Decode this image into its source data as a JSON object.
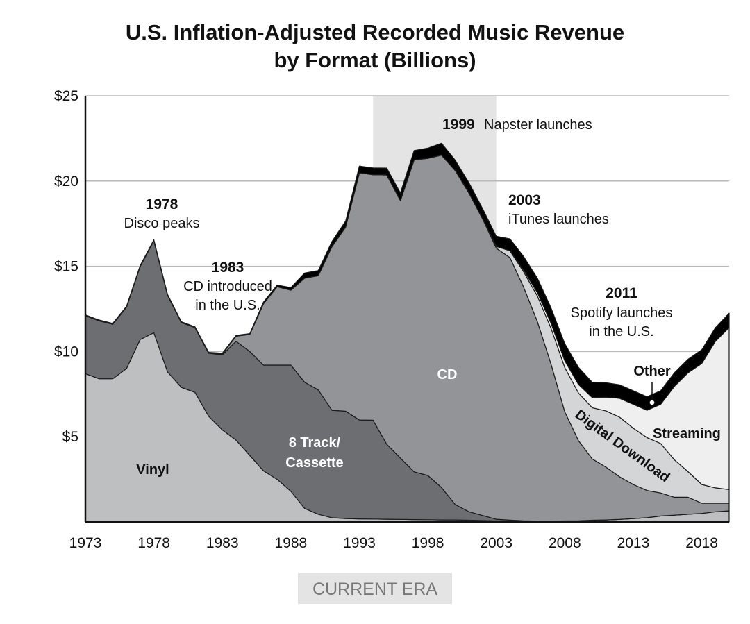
{
  "chart_data": {
    "type": "area",
    "title_lines": [
      "U.S. Inflation-Adjusted Recorded Music Revenue",
      "by Format (Billions)"
    ],
    "ylim": [
      0,
      25
    ],
    "y_ticks": [
      {
        "value": 5,
        "label": "$5"
      },
      {
        "value": 10,
        "label": "$10"
      },
      {
        "value": 15,
        "label": "$15"
      },
      {
        "value": 20,
        "label": "$20"
      },
      {
        "value": 25,
        "label": "$25"
      }
    ],
    "x_ticks": [
      1973,
      1978,
      1983,
      1988,
      1993,
      1998,
      2003,
      2008,
      2013,
      2018
    ],
    "x_range": [
      1973,
      2020
    ],
    "highlight_range": [
      1994,
      2003
    ],
    "highlight_label": "CURRENT ERA",
    "series": [
      {
        "name": "Vinyl",
        "label": "Vinyl",
        "color": "#bdbfc1",
        "points": [
          [
            1973,
            8.7
          ],
          [
            1974,
            8.4
          ],
          [
            1975,
            8.4
          ],
          [
            1976,
            9
          ],
          [
            1977,
            10.7
          ],
          [
            1978,
            11.1
          ],
          [
            1979,
            8.8
          ],
          [
            1980,
            7.9
          ],
          [
            1981,
            7.6
          ],
          [
            1982,
            6.2
          ],
          [
            1983,
            5.4
          ],
          [
            1984,
            4.8
          ],
          [
            1985,
            3.9
          ],
          [
            1986,
            3
          ],
          [
            1987,
            2.5
          ],
          [
            1988,
            1.8
          ],
          [
            1989,
            0.8
          ],
          [
            1990,
            0.45
          ],
          [
            1991,
            0.25
          ],
          [
            1992,
            0.2
          ],
          [
            1993,
            0.18
          ],
          [
            1994,
            0.17
          ],
          [
            1995,
            0.16
          ],
          [
            1996,
            0.15
          ],
          [
            1997,
            0.14
          ],
          [
            1998,
            0.13
          ],
          [
            1999,
            0.12
          ],
          [
            2000,
            0.12
          ],
          [
            2001,
            0.1
          ],
          [
            2002,
            0.08
          ],
          [
            2003,
            0.06
          ],
          [
            2004,
            0.06
          ],
          [
            2005,
            0.05
          ],
          [
            2006,
            0.05
          ],
          [
            2007,
            0.05
          ],
          [
            2008,
            0.06
          ],
          [
            2009,
            0.07
          ],
          [
            2010,
            0.1
          ],
          [
            2011,
            0.12
          ],
          [
            2012,
            0.15
          ],
          [
            2013,
            0.2
          ],
          [
            2014,
            0.25
          ],
          [
            2015,
            0.35
          ],
          [
            2016,
            0.4
          ],
          [
            2017,
            0.45
          ],
          [
            2018,
            0.5
          ],
          [
            2019,
            0.6
          ],
          [
            2020,
            0.65
          ]
        ]
      },
      {
        "name": "8 Track/Cassette",
        "label_lines": [
          "8 Track/",
          "Cassette"
        ],
        "color": "#6d6e72",
        "points": [
          [
            1973,
            3.4
          ],
          [
            1974,
            3.4
          ],
          [
            1975,
            3.2
          ],
          [
            1976,
            3.6
          ],
          [
            1977,
            4.3
          ],
          [
            1978,
            5.4
          ],
          [
            1979,
            4.5
          ],
          [
            1980,
            3.8
          ],
          [
            1981,
            3.8
          ],
          [
            1982,
            3.7
          ],
          [
            1983,
            4.4
          ],
          [
            1984,
            5.8
          ],
          [
            1985,
            6.1
          ],
          [
            1986,
            6.2
          ],
          [
            1987,
            6.7
          ],
          [
            1988,
            7.4
          ],
          [
            1989,
            7.4
          ],
          [
            1990,
            7.3
          ],
          [
            1991,
            6.3
          ],
          [
            1992,
            6.3
          ],
          [
            1993,
            5.8
          ],
          [
            1994,
            5.8
          ],
          [
            1995,
            4.4
          ],
          [
            1996,
            3.6
          ],
          [
            1997,
            2.8
          ],
          [
            1998,
            2.6
          ],
          [
            1999,
            1.9
          ],
          [
            2000,
            0.9
          ],
          [
            2001,
            0.5
          ],
          [
            2002,
            0.3
          ],
          [
            2003,
            0.1
          ],
          [
            2004,
            0.05
          ],
          [
            2005,
            0.02
          ],
          [
            2006,
            0
          ],
          [
            2007,
            0
          ],
          [
            2008,
            0
          ],
          [
            2009,
            0
          ],
          [
            2010,
            0
          ],
          [
            2011,
            0
          ],
          [
            2012,
            0
          ],
          [
            2013,
            0
          ],
          [
            2014,
            0
          ],
          [
            2015,
            0
          ],
          [
            2016,
            0
          ],
          [
            2017,
            0
          ],
          [
            2018,
            0
          ],
          [
            2019,
            0
          ],
          [
            2020,
            0
          ]
        ]
      },
      {
        "name": "CD",
        "label": "CD",
        "color": "#939497",
        "points": [
          [
            1973,
            0
          ],
          [
            1974,
            0
          ],
          [
            1975,
            0
          ],
          [
            1976,
            0
          ],
          [
            1977,
            0
          ],
          [
            1978,
            0
          ],
          [
            1979,
            0
          ],
          [
            1980,
            0
          ],
          [
            1981,
            0
          ],
          [
            1982,
            0
          ],
          [
            1983,
            0.05
          ],
          [
            1984,
            0.3
          ],
          [
            1985,
            1
          ],
          [
            1986,
            3.6
          ],
          [
            1987,
            4.6
          ],
          [
            1988,
            4.4
          ],
          [
            1989,
            6.1
          ],
          [
            1990,
            6.7
          ],
          [
            1991,
            9.6
          ],
          [
            1992,
            10.8
          ],
          [
            1993,
            14.5
          ],
          [
            1994,
            14.4
          ],
          [
            1995,
            15.8
          ],
          [
            1996,
            15.1
          ],
          [
            1997,
            18.3
          ],
          [
            1998,
            18.6
          ],
          [
            1999,
            19.5
          ],
          [
            2000,
            19.6
          ],
          [
            2001,
            18.7
          ],
          [
            2002,
            17.4
          ],
          [
            2003,
            15.9
          ],
          [
            2004,
            15.4
          ],
          [
            2005,
            13.7
          ],
          [
            2006,
            11.7
          ],
          [
            2007,
            9.2
          ],
          [
            2008,
            6.4
          ],
          [
            2009,
            4.7
          ],
          [
            2010,
            3.6
          ],
          [
            2011,
            3.1
          ],
          [
            2012,
            2.5
          ],
          [
            2013,
            2
          ],
          [
            2014,
            1.6
          ],
          [
            2015,
            1.35
          ],
          [
            2016,
            1.05
          ],
          [
            2017,
            1
          ],
          [
            2018,
            0.6
          ],
          [
            2019,
            0.5
          ],
          [
            2020,
            0.45
          ]
        ]
      },
      {
        "name": "Digital Download",
        "label": "Digital Download",
        "color": "#d4d5d7",
        "points": [
          [
            1973,
            0
          ],
          [
            1974,
            0
          ],
          [
            1975,
            0
          ],
          [
            1976,
            0
          ],
          [
            1977,
            0
          ],
          [
            1978,
            0
          ],
          [
            1979,
            0
          ],
          [
            1980,
            0
          ],
          [
            1981,
            0
          ],
          [
            1982,
            0
          ],
          [
            1983,
            0
          ],
          [
            1984,
            0
          ],
          [
            1985,
            0
          ],
          [
            1986,
            0
          ],
          [
            1987,
            0
          ],
          [
            1988,
            0
          ],
          [
            1989,
            0
          ],
          [
            1990,
            0
          ],
          [
            1991,
            0
          ],
          [
            1992,
            0
          ],
          [
            1993,
            0
          ],
          [
            1994,
            0
          ],
          [
            1995,
            0
          ],
          [
            1996,
            0
          ],
          [
            1997,
            0
          ],
          [
            1998,
            0
          ],
          [
            1999,
            0
          ],
          [
            2000,
            0
          ],
          [
            2001,
            0
          ],
          [
            2002,
            0
          ],
          [
            2003,
            0.1
          ],
          [
            2004,
            0.4
          ],
          [
            2005,
            0.9
          ],
          [
            2006,
            1.5
          ],
          [
            2007,
            2.1
          ],
          [
            2008,
            2.6
          ],
          [
            2009,
            2.8
          ],
          [
            2010,
            3
          ],
          [
            2011,
            3.3
          ],
          [
            2012,
            3.5
          ],
          [
            2013,
            3.3
          ],
          [
            2014,
            3.1
          ],
          [
            2015,
            2.9
          ],
          [
            2016,
            2.2
          ],
          [
            2017,
            1.5
          ],
          [
            2018,
            1.1
          ],
          [
            2019,
            0.9
          ],
          [
            2020,
            0.8
          ]
        ]
      },
      {
        "name": "Streaming",
        "label": "Streaming",
        "color": "#efeff0",
        "points": [
          [
            1973,
            0
          ],
          [
            1974,
            0
          ],
          [
            1975,
            0
          ],
          [
            1976,
            0
          ],
          [
            1977,
            0
          ],
          [
            1978,
            0
          ],
          [
            1979,
            0
          ],
          [
            1980,
            0
          ],
          [
            1981,
            0
          ],
          [
            1982,
            0
          ],
          [
            1983,
            0
          ],
          [
            1984,
            0
          ],
          [
            1985,
            0
          ],
          [
            1986,
            0
          ],
          [
            1987,
            0
          ],
          [
            1988,
            0
          ],
          [
            1989,
            0
          ],
          [
            1990,
            0
          ],
          [
            1991,
            0
          ],
          [
            1992,
            0
          ],
          [
            1993,
            0
          ],
          [
            1994,
            0
          ],
          [
            1995,
            0
          ],
          [
            1996,
            0
          ],
          [
            1997,
            0
          ],
          [
            1998,
            0
          ],
          [
            1999,
            0
          ],
          [
            2000,
            0
          ],
          [
            2001,
            0
          ],
          [
            2002,
            0
          ],
          [
            2003,
            0
          ],
          [
            2004,
            0
          ],
          [
            2005,
            0.1
          ],
          [
            2006,
            0.2
          ],
          [
            2007,
            0.3
          ],
          [
            2008,
            0.4
          ],
          [
            2009,
            0.5
          ],
          [
            2010,
            0.6
          ],
          [
            2011,
            0.8
          ],
          [
            2012,
            1.1
          ],
          [
            2013,
            1.4
          ],
          [
            2014,
            1.6
          ],
          [
            2015,
            2.3
          ],
          [
            2016,
            4.3
          ],
          [
            2017,
            5.8
          ],
          [
            2018,
            7.1
          ],
          [
            2019,
            8.6
          ],
          [
            2020,
            9.5
          ]
        ]
      },
      {
        "name": "Other",
        "label": "Other",
        "color": "#000000",
        "points": [
          [
            1973,
            0.05
          ],
          [
            1974,
            0.05
          ],
          [
            1975,
            0.05
          ],
          [
            1976,
            0.05
          ],
          [
            1977,
            0.05
          ],
          [
            1978,
            0.05
          ],
          [
            1979,
            0.05
          ],
          [
            1980,
            0.05
          ],
          [
            1981,
            0.05
          ],
          [
            1982,
            0.05
          ],
          [
            1983,
            0.05
          ],
          [
            1984,
            0.05
          ],
          [
            1985,
            0.05
          ],
          [
            1986,
            0.1
          ],
          [
            1987,
            0.1
          ],
          [
            1988,
            0.15
          ],
          [
            1989,
            0.3
          ],
          [
            1990,
            0.3
          ],
          [
            1991,
            0.3
          ],
          [
            1992,
            0.35
          ],
          [
            1993,
            0.4
          ],
          [
            1994,
            0.4
          ],
          [
            1995,
            0.4
          ],
          [
            1996,
            0.45
          ],
          [
            1997,
            0.55
          ],
          [
            1998,
            0.6
          ],
          [
            1999,
            0.7
          ],
          [
            2000,
            0.6
          ],
          [
            2001,
            0.6
          ],
          [
            2002,
            0.6
          ],
          [
            2003,
            0.6
          ],
          [
            2004,
            0.7
          ],
          [
            2005,
            0.8
          ],
          [
            2006,
            0.85
          ],
          [
            2007,
            0.9
          ],
          [
            2008,
            1
          ],
          [
            2009,
            1
          ],
          [
            2010,
            0.9
          ],
          [
            2011,
            0.85
          ],
          [
            2012,
            0.8
          ],
          [
            2013,
            0.8
          ],
          [
            2014,
            0.8
          ],
          [
            2015,
            0.8
          ],
          [
            2016,
            0.8
          ],
          [
            2017,
            0.8
          ],
          [
            2018,
            0.8
          ],
          [
            2019,
            0.8
          ],
          [
            2020,
            0.85
          ]
        ]
      }
    ],
    "annotations": [
      {
        "year_bold": "1978",
        "text": "Disco peaks"
      },
      {
        "year_bold": "1983",
        "lines": [
          "CD introduced",
          "in the U.S."
        ]
      },
      {
        "year_bold": "1999",
        "text": "Napster launches"
      },
      {
        "year_bold": "2003",
        "text": "iTunes launches"
      },
      {
        "year_bold": "2011",
        "lines": [
          "Spotify launches",
          "in the U.S."
        ]
      }
    ],
    "colors": {
      "grid": "#b9babc",
      "highlight": "#e4e4e5",
      "axis": "#111111",
      "era_box": "#e4e4e5",
      "era_text": "#777777"
    }
  }
}
